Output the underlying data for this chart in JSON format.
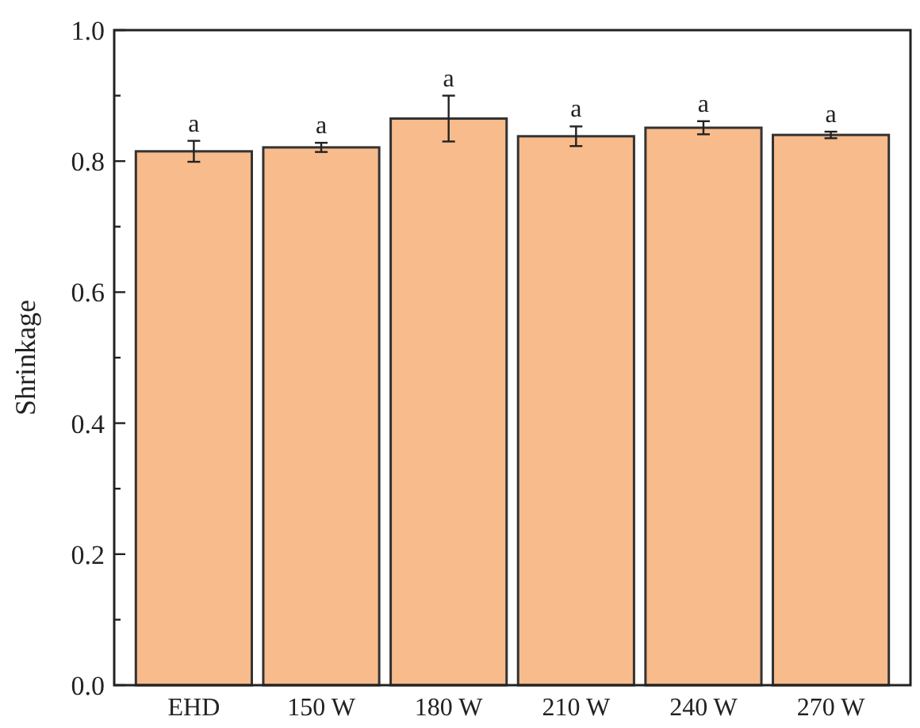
{
  "chart_data": {
    "type": "bar",
    "ylabel": "Shrinkage",
    "categories": [
      "EHD",
      "150 W",
      "180 W",
      "210 W",
      "240 W",
      "270 W"
    ],
    "values": [
      0.815,
      0.821,
      0.865,
      0.838,
      0.851,
      0.84
    ],
    "errors": [
      0.016,
      0.007,
      0.035,
      0.015,
      0.01,
      0.005
    ],
    "color": "#f8bb8c",
    "ylim": [
      0,
      1
    ],
    "yticks": [
      {
        "value": 0,
        "label": "0.0"
      },
      {
        "value": 0.1,
        "label": null
      },
      0.2,
      {
        "value": 0.3,
        "label": null
      },
      0.4,
      {
        "value": 0.5,
        "label": null
      },
      0.6,
      {
        "value": 0.7,
        "label": null
      },
      0.8,
      {
        "value": 0.9,
        "label": null
      },
      {
        "value": 1,
        "label": "1.0"
      }
    ],
    "grid": false,
    "annotations": [
      {
        "text": "a",
        "x": "EHD",
        "y": 0.831
      },
      {
        "text": "a",
        "x": "150 W",
        "y": 0.828
      },
      {
        "text": "a",
        "x": "180 W",
        "y": 0.9
      },
      {
        "text": "a",
        "x": "210 W",
        "y": 0.853
      },
      {
        "text": "a",
        "x": "240 W",
        "y": 0.861
      },
      {
        "text": "a",
        "x": "270 W",
        "y": 0.845
      }
    ]
  }
}
